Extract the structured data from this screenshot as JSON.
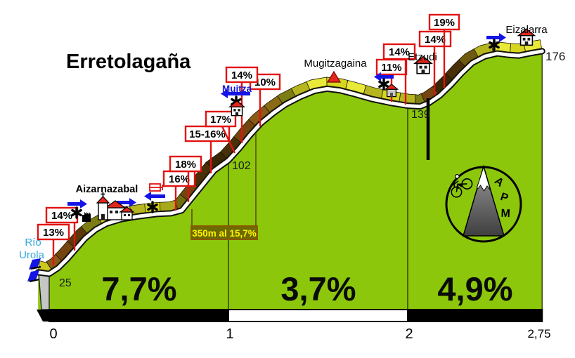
{
  "header": {
    "title": "Erretolagaña"
  },
  "axis": {
    "km_ticks": [
      "0",
      "1",
      "2",
      "2,75"
    ]
  },
  "elevation_labels": [
    "25",
    "102",
    "139",
    "176"
  ],
  "places": {
    "river_line1": "Río",
    "river_line2": "Urola",
    "village": "Aizarnazabal",
    "muitza": "Muitza",
    "summit1": "Mugitzagaina",
    "etzudi": "Etzudi",
    "top": "Eizalarra"
  },
  "gradient_boxes": [
    "13%",
    "14%",
    "16%",
    "18%",
    "15-16%",
    "17%",
    "14%",
    "10%",
    "11%",
    "14%",
    "14%",
    "19%"
  ],
  "note": {
    "text": "350m al 15,7%"
  },
  "logo": {
    "letters": [
      "A",
      "P",
      "M"
    ]
  },
  "colors": {
    "profile_green": "#8CC70C",
    "divider": "#2F3800",
    "road_outline": "#111111",
    "road_fill": "#FFFFFF",
    "label_box_border": "#E21212",
    "arrow_blue": "#1414E6",
    "river_blue": "#35A8DC",
    "muitza_blue": "#1414D8",
    "note_bg": "#6B6B00",
    "note_border": "#8B5A00",
    "note_text": "#FFF200",
    "roof_red": "#E3261C",
    "cliff_grey": "#C6C6C6",
    "bar_black": "#000000",
    "bar_white": "#FFFFFF"
  },
  "chart_data": {
    "type": "area",
    "title": "Erretolagaña",
    "x_unit": "km",
    "y_unit": "m",
    "x_ticks": [
      0,
      1,
      2,
      2.75
    ],
    "start_elevation_m": 25,
    "end_elevation_m": 176,
    "profile": [
      [
        0.0,
        25
      ],
      [
        0.05,
        29
      ],
      [
        0.1,
        35
      ],
      [
        0.15,
        42
      ],
      [
        0.2,
        49
      ],
      [
        0.26,
        55
      ],
      [
        0.32,
        59
      ],
      [
        0.4,
        62
      ],
      [
        0.5,
        64
      ],
      [
        0.6,
        65.5
      ],
      [
        0.68,
        66
      ],
      [
        0.74,
        68
      ],
      [
        0.8,
        77
      ],
      [
        0.86,
        86
      ],
      [
        0.92,
        95
      ],
      [
        1.0,
        102
      ],
      [
        1.06,
        110
      ],
      [
        1.12,
        119
      ],
      [
        1.18,
        127
      ],
      [
        1.25,
        134
      ],
      [
        1.32,
        140
      ],
      [
        1.4,
        145
      ],
      [
        1.48,
        149
      ],
      [
        1.55,
        150.5
      ],
      [
        1.62,
        149.5
      ],
      [
        1.7,
        147
      ],
      [
        1.8,
        143.5
      ],
      [
        1.9,
        141
      ],
      [
        2.0,
        139
      ],
      [
        2.07,
        138.5
      ],
      [
        2.12,
        141
      ],
      [
        2.18,
        146
      ],
      [
        2.24,
        153
      ],
      [
        2.3,
        161
      ],
      [
        2.36,
        168
      ],
      [
        2.43,
        172.5
      ],
      [
        2.5,
        174.5
      ],
      [
        2.56,
        173.5
      ],
      [
        2.62,
        173
      ],
      [
        2.68,
        174.5
      ],
      [
        2.75,
        176
      ]
    ],
    "sections": [
      {
        "from_km": 0,
        "to_km": 1,
        "label": "7,7%",
        "bar_color": "#000000"
      },
      {
        "from_km": 1,
        "to_km": 2,
        "label": "3,7%",
        "bar_color": "#FFFFFF"
      },
      {
        "from_km": 2,
        "to_km": 2.75,
        "label": "4,9%",
        "bar_color": "#000000"
      }
    ],
    "steep_note": {
      "text": "350m al 15,7%",
      "from_km": 0.795,
      "to_km": 1.15
    },
    "surface_segments": [
      {
        "from": -0.062,
        "to": 0.02,
        "color": "#C9C920"
      },
      {
        "from": 0.02,
        "to": 0.08,
        "color": "#8A5A17"
      },
      {
        "from": 0.08,
        "to": 0.15,
        "color": "#74450F"
      },
      {
        "from": 0.15,
        "to": 0.22,
        "color": "#5C370B"
      },
      {
        "from": 0.22,
        "to": 0.3,
        "color": "#7D7D15"
      },
      {
        "from": 0.3,
        "to": 0.38,
        "color": "#D6D61F"
      },
      {
        "from": 0.38,
        "to": 0.46,
        "color": "#E9E93A"
      },
      {
        "from": 0.46,
        "to": 0.54,
        "color": "#B5B520"
      },
      {
        "from": 0.54,
        "to": 0.62,
        "color": "#D6D61F"
      },
      {
        "from": 0.62,
        "to": 0.72,
        "color": "#A8A81C"
      },
      {
        "from": 0.72,
        "to": 0.78,
        "color": "#6E6E10"
      },
      {
        "from": 0.78,
        "to": 0.84,
        "color": "#74450F"
      },
      {
        "from": 0.84,
        "to": 0.92,
        "color": "#4A3009"
      },
      {
        "from": 0.92,
        "to": 1.0,
        "color": "#3A2706"
      },
      {
        "from": 1.0,
        "to": 1.08,
        "color": "#4A3009"
      },
      {
        "from": 1.08,
        "to": 1.16,
        "color": "#74450F"
      },
      {
        "from": 1.16,
        "to": 1.24,
        "color": "#8A5A17"
      },
      {
        "from": 1.24,
        "to": 1.31,
        "color": "#8A6A14"
      },
      {
        "from": 1.31,
        "to": 1.38,
        "color": "#7D7D15"
      },
      {
        "from": 1.38,
        "to": 1.46,
        "color": "#B5B520"
      },
      {
        "from": 1.46,
        "to": 1.55,
        "color": "#E9E93A"
      },
      {
        "from": 1.55,
        "to": 1.65,
        "color": "#D6D61F"
      },
      {
        "from": 1.65,
        "to": 1.75,
        "color": "#E9E93A"
      },
      {
        "from": 1.75,
        "to": 1.85,
        "color": "#B5B520"
      },
      {
        "from": 1.85,
        "to": 1.95,
        "color": "#D6D61F"
      },
      {
        "from": 1.95,
        "to": 2.04,
        "color": "#B5B520"
      },
      {
        "from": 2.04,
        "to": 2.1,
        "color": "#7D7D15"
      },
      {
        "from": 2.1,
        "to": 2.18,
        "color": "#74450F"
      },
      {
        "from": 2.18,
        "to": 2.26,
        "color": "#3A2706"
      },
      {
        "from": 2.26,
        "to": 2.33,
        "color": "#4A3009"
      },
      {
        "from": 2.33,
        "to": 2.4,
        "color": "#6E5A10"
      },
      {
        "from": 2.4,
        "to": 2.48,
        "color": "#B5B520"
      },
      {
        "from": 2.48,
        "to": 2.57,
        "color": "#E9E93A"
      },
      {
        "from": 2.57,
        "to": 2.66,
        "color": "#D6D61F"
      },
      {
        "from": 2.66,
        "to": 2.75,
        "color": "#E9E93A"
      }
    ]
  }
}
